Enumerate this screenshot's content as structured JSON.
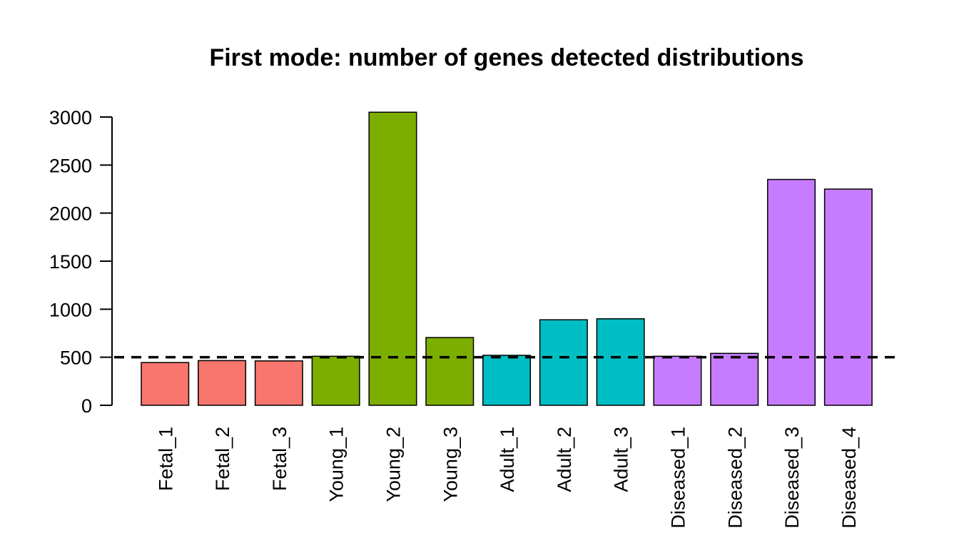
{
  "chart_data": {
    "type": "bar",
    "title": "First mode: number of genes detected distributions",
    "xlabel": "",
    "ylabel": "",
    "categories": [
      "Fetal_1",
      "Fetal_2",
      "Fetal_3",
      "Young_1",
      "Young_2",
      "Young_3",
      "Adult_1",
      "Adult_2",
      "Adult_3",
      "Diseased_1",
      "Diseased_2",
      "Diseased_3",
      "Diseased_4"
    ],
    "values": [
      445,
      465,
      462,
      510,
      3050,
      705,
      520,
      890,
      900,
      510,
      540,
      2350,
      2250
    ],
    "groups": [
      "Fetal",
      "Fetal",
      "Fetal",
      "Young",
      "Young",
      "Young",
      "Adult",
      "Adult",
      "Adult",
      "Diseased",
      "Diseased",
      "Diseased",
      "Diseased"
    ],
    "group_colors": {
      "Fetal": "#F8766D",
      "Young": "#7CAE00",
      "Adult": "#00BFC4",
      "Diseased": "#C77CFF"
    },
    "yticks": [
      0,
      500,
      1000,
      1500,
      2000,
      2500,
      3000
    ],
    "ylim": [
      0,
      3000
    ],
    "reference_line": {
      "value": 500,
      "style": "dashed",
      "color": "#000000"
    },
    "grid": false,
    "legend": "none"
  }
}
